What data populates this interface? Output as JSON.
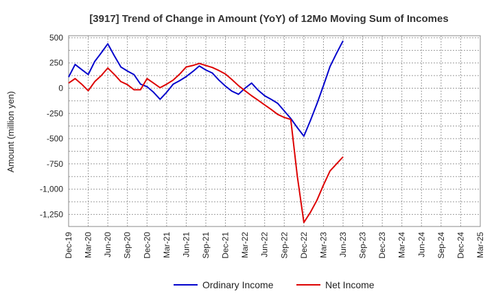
{
  "chart_data": {
    "type": "line",
    "title": "[3917]  Trend of Change in Amount (YoY) of 12Mo Moving Sum of Incomes",
    "ylabel": "Amount (million yen)",
    "xlabel": "",
    "x_ticks": [
      "Dec-19",
      "Mar-20",
      "Jun-20",
      "Sep-20",
      "Dec-20",
      "Mar-21",
      "Jun-21",
      "Sep-21",
      "Dec-21",
      "Mar-22",
      "Jun-22",
      "Sep-22",
      "Dec-22",
      "Mar-23",
      "Jun-23",
      "Sep-23",
      "Dec-23",
      "Mar-24",
      "Jun-24",
      "Sep-24",
      "Dec-24",
      "Mar-25"
    ],
    "y_ticks": [
      500,
      250,
      0,
      -250,
      -500,
      -750,
      -1000,
      -1250
    ],
    "y_tick_labels": [
      "500",
      "250",
      "0",
      "-250",
      "-500",
      "-750",
      "-1,000",
      "-1,250"
    ],
    "ylim": [
      -1370,
      520
    ],
    "grid": true,
    "legend_position": "bottom",
    "series": [
      {
        "name": "Ordinary Income",
        "color": "#0000cc",
        "x": [
          0,
          1,
          2,
          3,
          4,
          5,
          6,
          7,
          8,
          9,
          10,
          11,
          12,
          13,
          14,
          15,
          16,
          17,
          18,
          19,
          20,
          21,
          22,
          23,
          24,
          25,
          26,
          27,
          28,
          29,
          30,
          31,
          32,
          33,
          34,
          35,
          36,
          37,
          38,
          39,
          40,
          41,
          42,
          43,
          44,
          45,
          46,
          47,
          48,
          49,
          50,
          51,
          52,
          53,
          54,
          55,
          56,
          57,
          58,
          59,
          60,
          61,
          62,
          63
        ],
        "values": [
          110,
          235,
          185,
          135,
          265,
          350,
          440,
          320,
          210,
          170,
          135,
          40,
          15,
          -40,
          -110,
          -40,
          40,
          75,
          115,
          165,
          220,
          180,
          150,
          80,
          20,
          -30,
          -60,
          0,
          50,
          -20,
          -75,
          -110,
          -150,
          -225,
          -300,
          -390,
          -475,
          -320,
          -155,
          25,
          215,
          345,
          470,
          null,
          null,
          null,
          null,
          null,
          null,
          null,
          null,
          null,
          null,
          null,
          null,
          null,
          null,
          null,
          null,
          null,
          null,
          null,
          null,
          null
        ]
      },
      {
        "name": "Net Income",
        "color": "#dd0000",
        "x": [
          0,
          1,
          2,
          3,
          4,
          5,
          6,
          7,
          8,
          9,
          10,
          11,
          12,
          13,
          14,
          15,
          16,
          17,
          18,
          19,
          20,
          21,
          22,
          23,
          24,
          25,
          26,
          27,
          28,
          29,
          30,
          31,
          32,
          33,
          34,
          35,
          36,
          37,
          38,
          39,
          40,
          41,
          42,
          43,
          44,
          45,
          46,
          47,
          48,
          49,
          50,
          51,
          52,
          53,
          54,
          55,
          56,
          57,
          58,
          59,
          60,
          61,
          62,
          63
        ],
        "values": [
          50,
          95,
          40,
          -25,
          65,
          125,
          200,
          135,
          65,
          35,
          -15,
          -15,
          95,
          50,
          5,
          40,
          80,
          140,
          210,
          225,
          245,
          225,
          205,
          175,
          140,
          85,
          25,
          -25,
          -75,
          -120,
          -165,
          -210,
          -260,
          -290,
          -310,
          -870,
          -1330,
          -1230,
          -1110,
          -960,
          -820,
          -750,
          -680,
          null,
          null,
          null,
          null,
          null,
          null,
          null,
          null,
          null,
          null,
          null,
          null,
          null,
          null,
          null,
          null,
          null,
          null,
          null,
          null,
          null
        ]
      }
    ]
  }
}
